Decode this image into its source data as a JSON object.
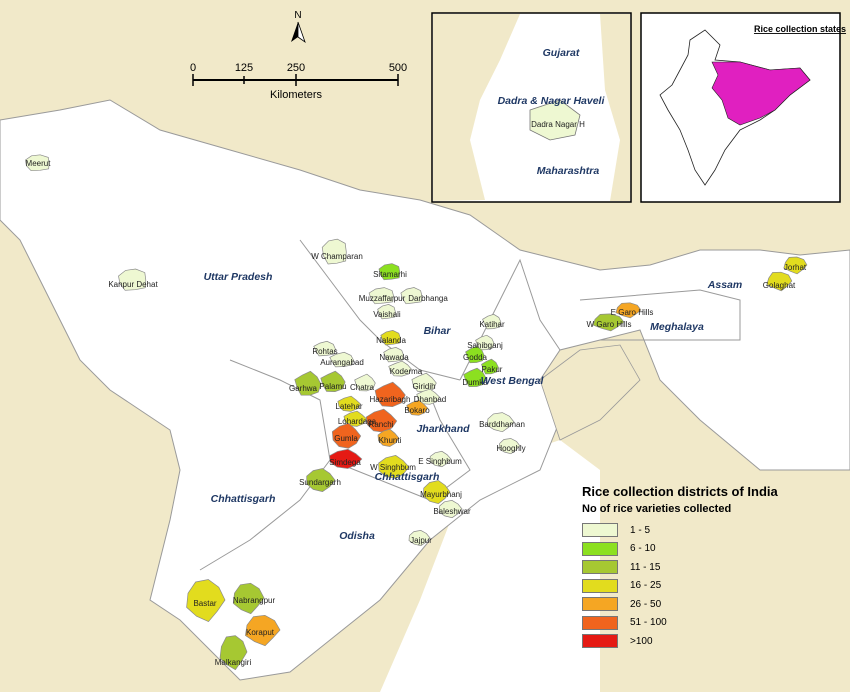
{
  "scale_bar": {
    "ticks": [
      "0",
      "125",
      "250",
      "500"
    ],
    "unit": "Kilometers"
  },
  "north_arrow": {
    "label": "N"
  },
  "inset_local": {
    "labels": [
      "Gujarat",
      "Dadra & Nagar Haveli",
      "Dadra Nagar H",
      "Maharashtra"
    ]
  },
  "inset_india": {
    "title": "Rice collection states",
    "highlight_color": "#e020c0"
  },
  "states": [
    {
      "name": "Uttar Pradesh"
    },
    {
      "name": "Bihar"
    },
    {
      "name": "Jharkhand"
    },
    {
      "name": "West Bengal"
    },
    {
      "name": "Chhattisgarh"
    },
    {
      "name": "Chhattisgarh"
    },
    {
      "name": "Odisha"
    },
    {
      "name": "Assam"
    },
    {
      "name": "Meghalaya"
    }
  ],
  "districts": [
    {
      "name": "Meerut",
      "class": "1 - 5"
    },
    {
      "name": "Kanpur Dehat",
      "class": "1 - 5"
    },
    {
      "name": "W Champaran",
      "class": "1 - 5"
    },
    {
      "name": "Sitamarhi",
      "class": "6 - 10"
    },
    {
      "name": "Muzzaffarpur",
      "class": "1 - 5"
    },
    {
      "name": "Darbhanga",
      "class": "1 - 5"
    },
    {
      "name": "Vaishali",
      "class": "1 - 5"
    },
    {
      "name": "Nalanda",
      "class": "16 - 25"
    },
    {
      "name": "Nawada",
      "class": "1 - 5"
    },
    {
      "name": "Rohtas",
      "class": "1 - 5"
    },
    {
      "name": "Aurangabad",
      "class": "1 - 5"
    },
    {
      "name": "Katihar",
      "class": "1 - 5"
    },
    {
      "name": "Sahibganj",
      "class": "1 - 5"
    },
    {
      "name": "Godda",
      "class": "6 - 10"
    },
    {
      "name": "Pakur",
      "class": "6 - 10"
    },
    {
      "name": "Dumka",
      "class": "6 - 10"
    },
    {
      "name": "Garhwa",
      "class": "11 - 15"
    },
    {
      "name": "Palamu",
      "class": "11 - 15"
    },
    {
      "name": "Chatra",
      "class": "1 - 5"
    },
    {
      "name": "Koderma",
      "class": "1 - 5"
    },
    {
      "name": "Giridih",
      "class": "1 - 5"
    },
    {
      "name": "Hazaribagh",
      "class": "51 - 100"
    },
    {
      "name": "Dhanbad",
      "class": "1 - 5"
    },
    {
      "name": "Bokaro",
      "class": "26 - 50"
    },
    {
      "name": "Latehar",
      "class": "16 - 25"
    },
    {
      "name": "Lohardaga",
      "class": "16 - 25"
    },
    {
      "name": "Ranchi",
      "class": "51 - 100"
    },
    {
      "name": "Gumla",
      "class": "51 - 100"
    },
    {
      "name": "Khunti",
      "class": "26 - 50"
    },
    {
      "name": "Simdega",
      "class": ">100"
    },
    {
      "name": "W Singhbum",
      "class": "16 - 25"
    },
    {
      "name": "E Singhbum",
      "class": "1 - 5"
    },
    {
      "name": "Sundargarh",
      "class": "11 - 15"
    },
    {
      "name": "Mayurbhanj",
      "class": "16 - 25"
    },
    {
      "name": "Baleshwar",
      "class": "1 - 5"
    },
    {
      "name": "Jajpur",
      "class": "1 - 5"
    },
    {
      "name": "Barddhaman",
      "class": "1 - 5"
    },
    {
      "name": "Hooghly",
      "class": "1 - 5"
    },
    {
      "name": "Bastar",
      "class": "16 - 25"
    },
    {
      "name": "Nabrangpur",
      "class": "11 - 15"
    },
    {
      "name": "Koraput",
      "class": "26 - 50"
    },
    {
      "name": "Malkangiri",
      "class": "11 - 15"
    },
    {
      "name": "E Garo Hills",
      "class": "26 - 50"
    },
    {
      "name": "W Garo Hills",
      "class": "11 - 15"
    },
    {
      "name": "Jorhat",
      "class": "16 - 25"
    },
    {
      "name": "Golaghat",
      "class": "16 - 25"
    }
  ],
  "legend": {
    "title": "Rice collection districts of India",
    "subtitle": "No of rice varieties collected",
    "classes": [
      {
        "label": "1 - 5",
        "color": "#eef8d2"
      },
      {
        "label": "6 - 10",
        "color": "#8ce020"
      },
      {
        "label": "11 - 15",
        "color": "#a6c832"
      },
      {
        "label": "16 - 25",
        "color": "#e2dc1e"
      },
      {
        "label": "26 - 50",
        "color": "#f5a623"
      },
      {
        "label": "51 - 100",
        "color": "#f0641e"
      },
      {
        "label": ">100",
        "color": "#e51a14"
      }
    ]
  },
  "colors": {
    "background_land": "#f1e9c9",
    "study_states": "#ffffff",
    "borders": "#9a9a9a"
  }
}
